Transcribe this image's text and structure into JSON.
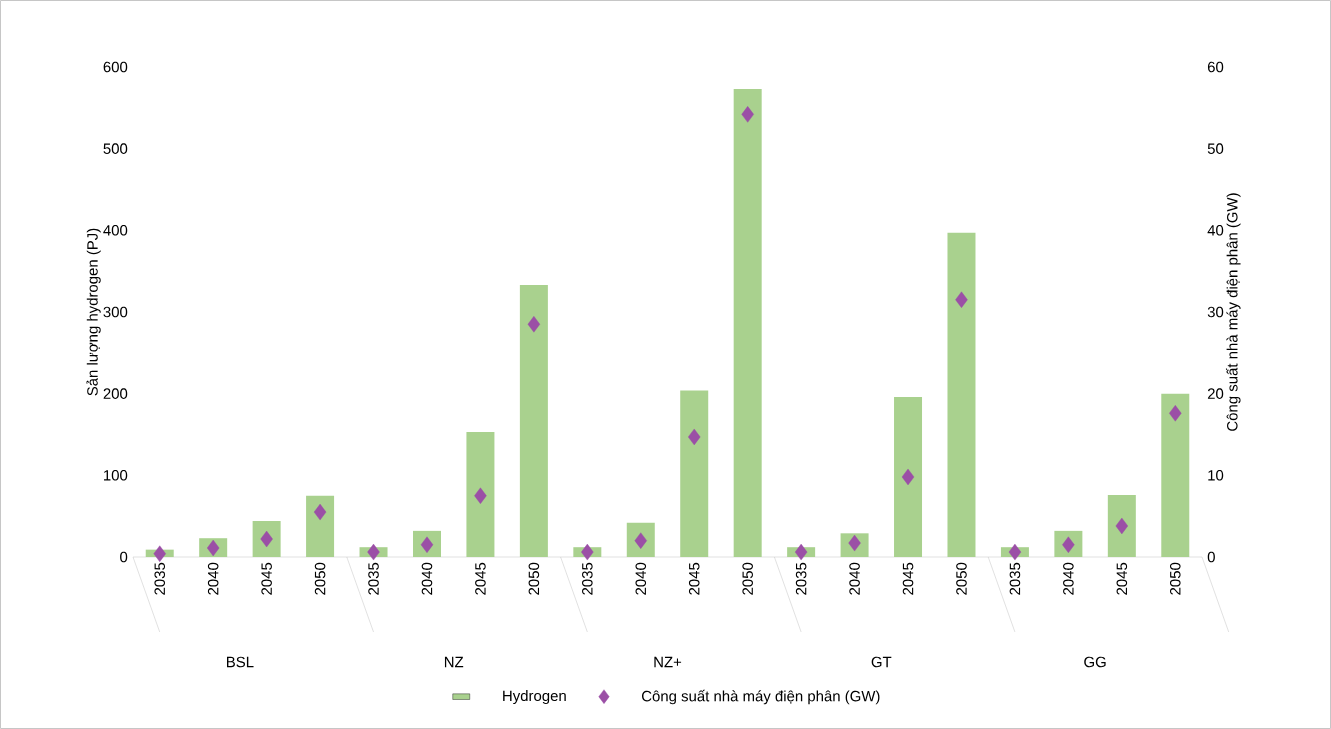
{
  "chart_data": {
    "type": "bar",
    "categories": [
      "2035",
      "2040",
      "2045",
      "2050",
      "2035",
      "2040",
      "2045",
      "2050",
      "2035",
      "2040",
      "2045",
      "2050",
      "2035",
      "2040",
      "2045",
      "2050",
      "2035",
      "2040",
      "2045",
      "2050"
    ],
    "ylabel": "Sản lượng hydrogen (PJ)",
    "y2label": "Công suất nhà máy điện phân (GW)",
    "ylim": [
      0,
      600
    ],
    "yticks": [
      0,
      100,
      200,
      300,
      400,
      500,
      600
    ],
    "y2lim": [
      0,
      60
    ],
    "y2ticks": [
      0,
      10,
      20,
      30,
      40,
      50,
      60
    ],
    "annotations": [
      "BSL",
      "NZ",
      "NZ+",
      "GT",
      "GG"
    ],
    "legend": "bottom",
    "series": [
      {
        "name": "Hydrogen",
        "color": "#a9d18e",
        "values": [
          9,
          23,
          44,
          75,
          12,
          32,
          153,
          333,
          12,
          42,
          204,
          573,
          12,
          29,
          196,
          397,
          12,
          32,
          76,
          200
        ]
      },
      {
        "name": "Công suất nhà máy điện phân (GW)",
        "type": "scatter",
        "axis": "y2",
        "marker": "diamond",
        "color": "#9b4fa6",
        "values": [
          0.4,
          1.1,
          2.2,
          5.5,
          0.6,
          1.5,
          7.5,
          28.5,
          0.6,
          2.0,
          14.7,
          54.2,
          0.6,
          1.7,
          9.8,
          31.5,
          0.6,
          1.5,
          3.8,
          17.6
        ]
      }
    ]
  }
}
